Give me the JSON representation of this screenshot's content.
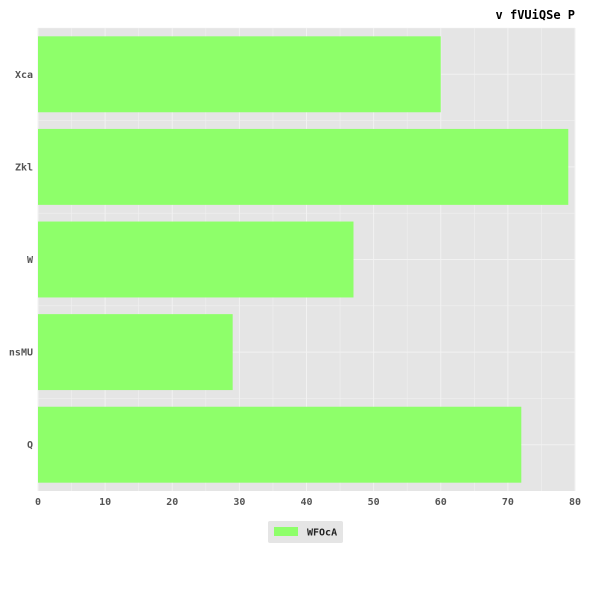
{
  "chart_data": {
    "type": "bar",
    "orientation": "horizontal",
    "title": "v fVUiQSe P",
    "categories": [
      "Xca",
      "Zkl",
      "W",
      "nsMU",
      "Q"
    ],
    "series": [
      {
        "name": "WFOcA",
        "values": [
          60,
          79,
          47,
          29,
          72
        ]
      }
    ],
    "xlim": [
      0,
      80
    ],
    "xticks": [
      0,
      10,
      20,
      30,
      40,
      50,
      60,
      70,
      80
    ],
    "xlabel": "",
    "ylabel": "",
    "grid": true,
    "legend_position": "bottom-center",
    "colors": {
      "bar": "#8eff6a",
      "plot_bg": "#e5e5e5",
      "grid": "#f2f2f2",
      "legend_bg": "#e5e5e5"
    }
  }
}
